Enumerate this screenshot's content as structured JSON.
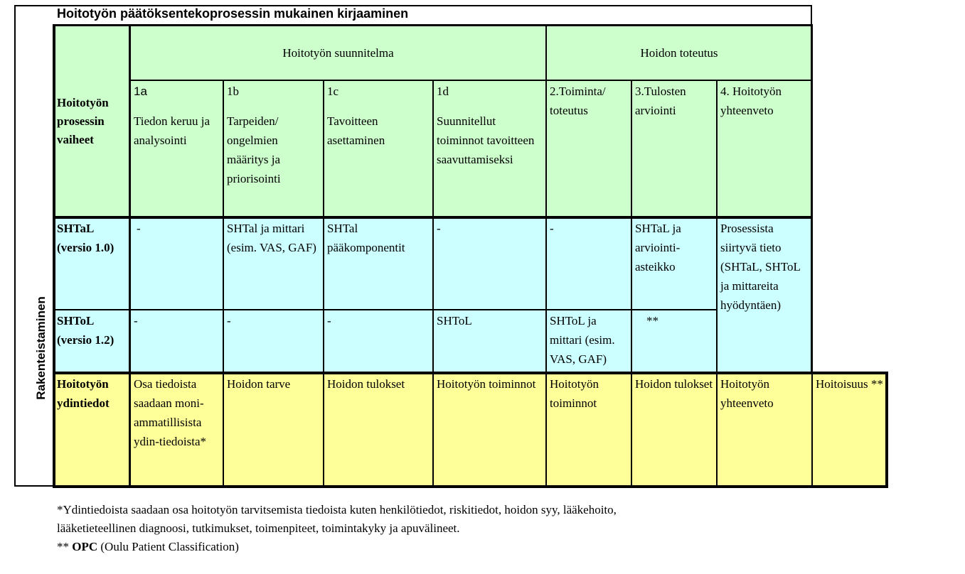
{
  "title": "Hoitotyön päätöksentekoprosessin mukainen kirjaaminen",
  "side_label": "Rakenteistaminen",
  "header": {
    "group1": "Hoitotyön suunnitelma",
    "group2": "Hoidon toteutus",
    "row_label": "Hoitotyön prosessin vaiheet",
    "phases": [
      {
        "num": "1a",
        "text": "Tiedon keruu ja analysointi"
      },
      {
        "num": "1b",
        "text": "Tarpeiden/ ongelmien määritys ja priorisointi"
      },
      {
        "num": "1c",
        "text": "Tavoitteen asettaminen"
      },
      {
        "num": "1d",
        "text": "Suunnitellut toiminnot tavoitteen saavuttamiseksi"
      },
      {
        "num": "",
        "text": "2.Toiminta/ toteutus"
      },
      {
        "num": "",
        "text": "3.Tulosten arviointi"
      },
      {
        "num": "",
        "text": "4. Hoitotyön yhteenveto"
      }
    ]
  },
  "rows": {
    "shtal": {
      "label": "SHTaL (versio 1.0)",
      "cells": [
        "-",
        "SHTal ja mittari (esim. VAS, GAF)",
        "SHTal pääkomponentit",
        "-",
        "-",
        "SHTaL ja arviointi-asteikko"
      ]
    },
    "shtol": {
      "label": "SHToL (versio 1.2)",
      "cells": [
        "-",
        "-",
        "-",
        "SHToL",
        "SHToL ja mittari (esim. VAS, GAF)",
        "**"
      ]
    },
    "merged_last": "Prosessista siirtyvä tieto (SHTaL, SHToL ja mittareita hyödyntäen)",
    "ydin": {
      "label": "Hoitotyön ydintiedot",
      "cells": [
        "Osa tiedoista saadaan moni-ammatillisista ydin-tiedoista*",
        "Hoidon tarve",
        "Hoidon tulokset",
        "Hoitotyön toiminnot",
        "Hoitotyön toiminnot",
        "Hoidon tulokset",
        "Hoitotyön yhteenveto",
        "Hoitoisuus **"
      ]
    }
  },
  "footnotes": {
    "line1": "*Ydintiedoista saadaan osa hoitotyön tarvitsemista tiedoista kuten henkilötiedot, riskitiedot, hoidon syy, lääkehoito,",
    "line2": "lääketieteellinen diagnoosi, tutkimukset, toimenpiteet, toimintakyky ja apuvälineet.",
    "line3_prefix": "** ",
    "line3_bold": "OPC",
    "line3_rest": " (Oulu Patient Classification)"
  }
}
